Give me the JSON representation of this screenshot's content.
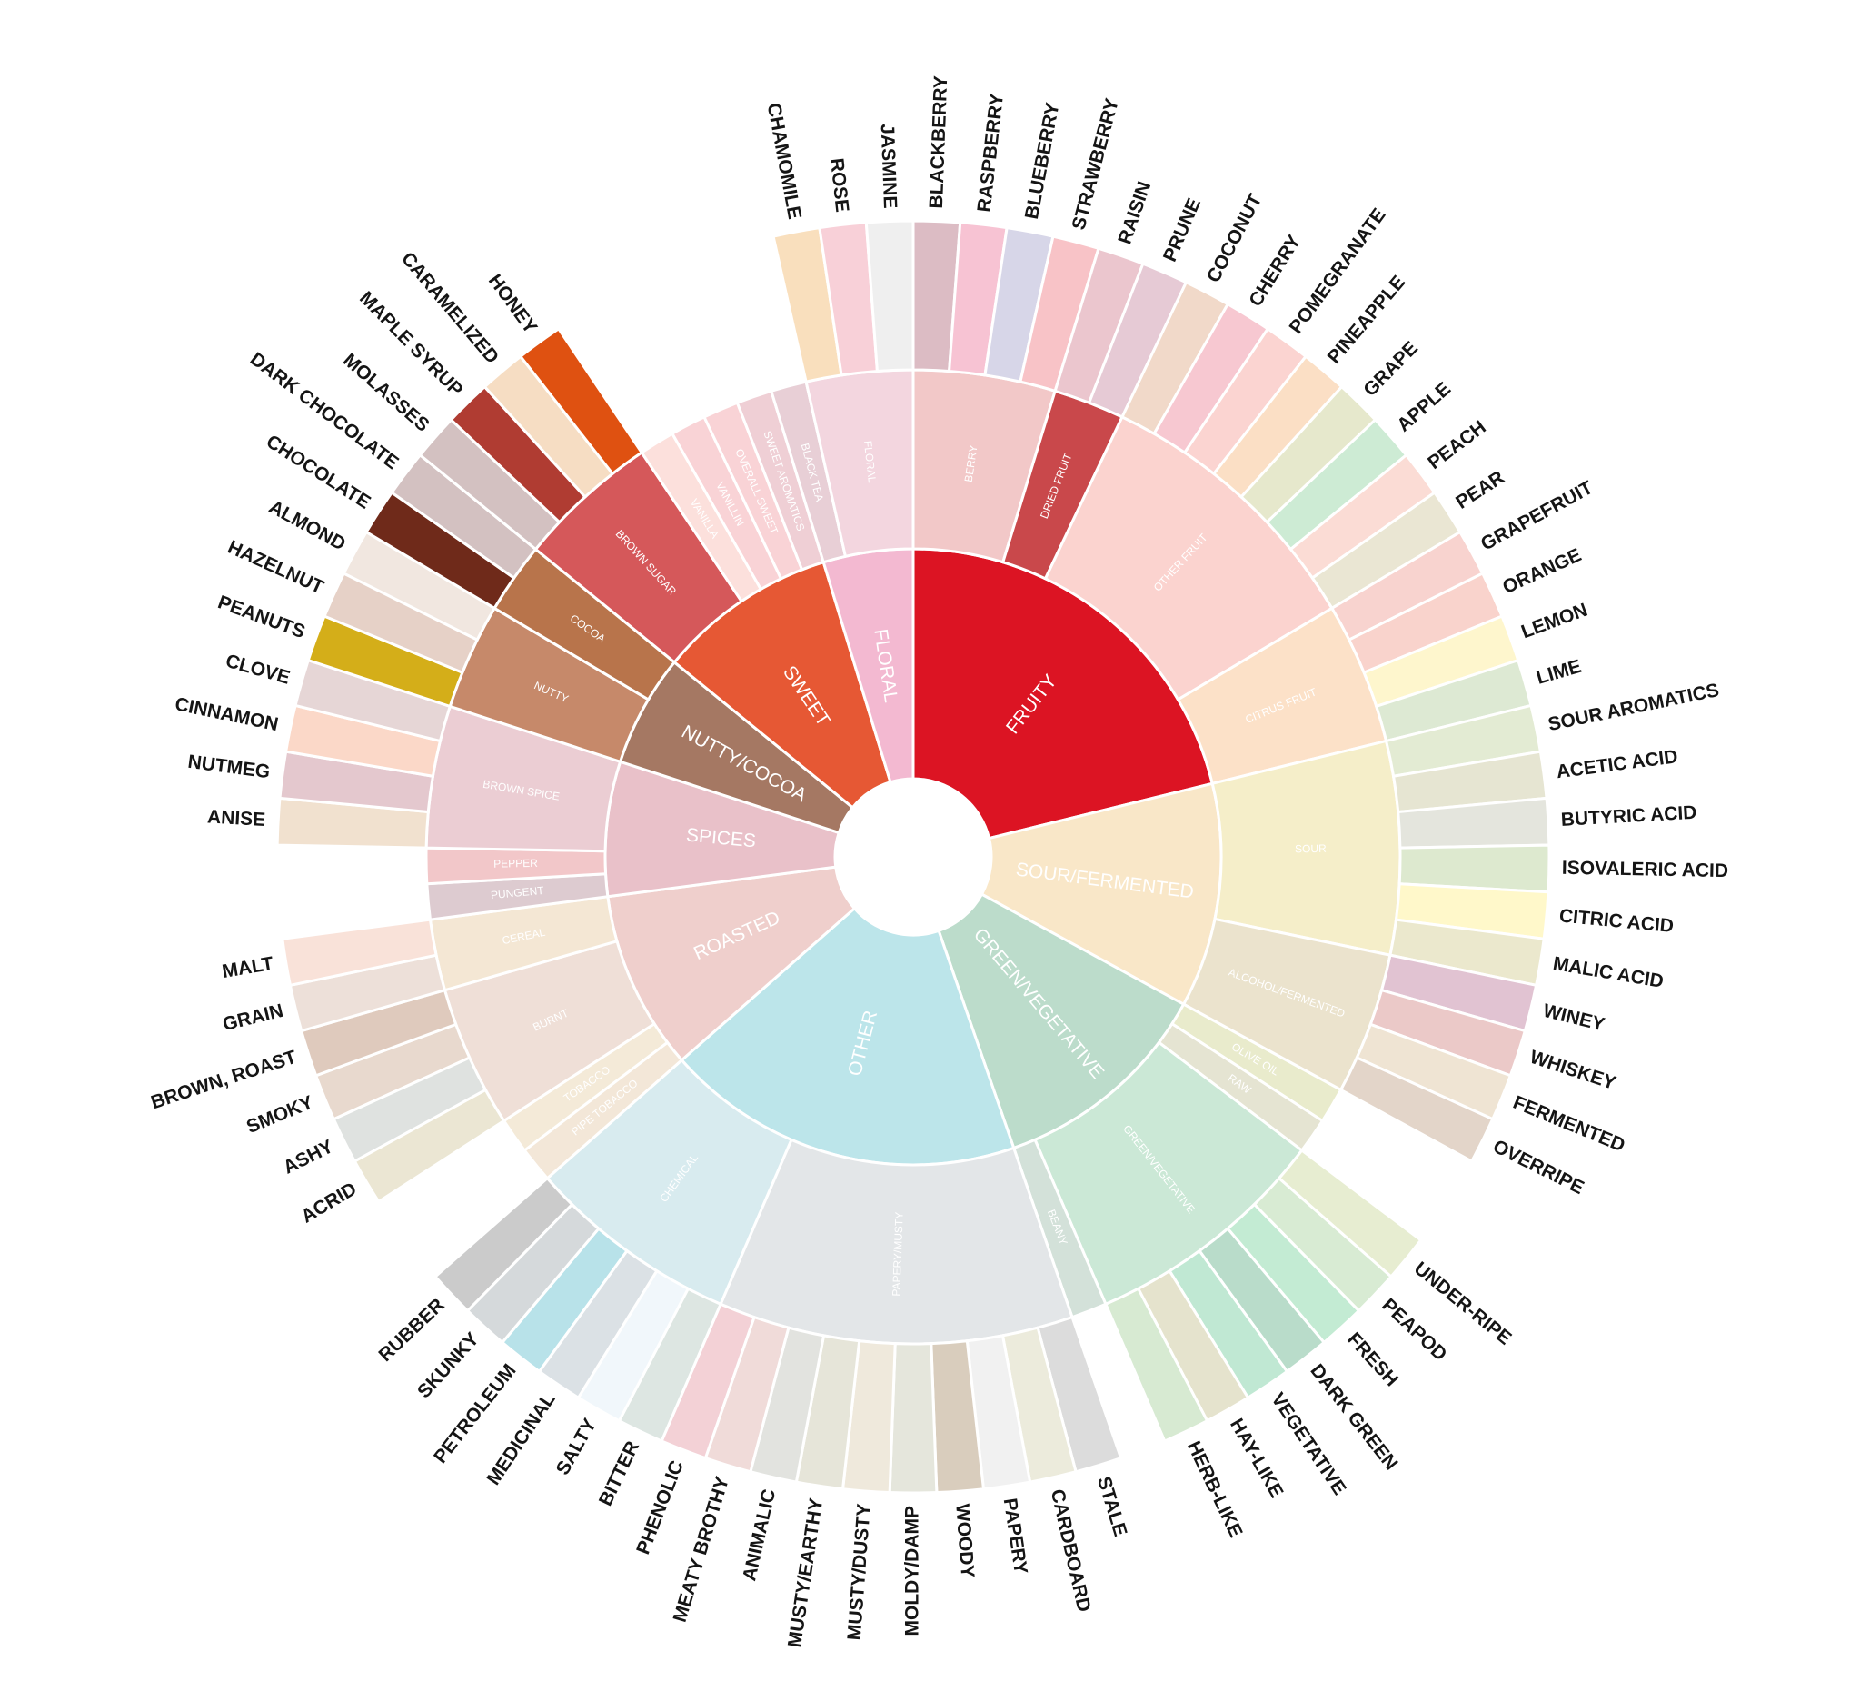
{
  "nodes": [
    {
      "label": "FRUITY",
      "color": "#dc1423",
      "children": [
        {
          "label": "BERRY",
          "color": "#f2c8c8",
          "children": [
            {
              "label": "BLACKBERRY",
              "color": "#dcbcc4"
            },
            {
              "label": "RASPBERRY",
              "color": "#f7c3d3"
            },
            {
              "label": "BLUEBERRY",
              "color": "#d7d6e8"
            },
            {
              "label": "STRAWBERRY",
              "color": "#f8c3c7"
            }
          ]
        },
        {
          "label": "DRIED FRUIT",
          "color": "#c9484b",
          "children": [
            {
              "label": "RAISIN",
              "color": "#ebc6ce"
            },
            {
              "label": "PRUNE",
              "color": "#e6cad5"
            }
          ]
        },
        {
          "label": "OTHER FRUIT",
          "color": "#fbd3cf",
          "children": [
            {
              "label": "COCONUT",
              "color": "#f1d9c9"
            },
            {
              "label": "CHERRY",
              "color": "#f7c8d1"
            },
            {
              "label": "POMEGRANATE",
              "color": "#fbd4d1"
            },
            {
              "label": "PINEAPPLE",
              "color": "#fbdfc5"
            },
            {
              "label": "GRAPE",
              "color": "#e6e8cc"
            },
            {
              "label": "APPLE",
              "color": "#cdebd4"
            },
            {
              "label": "PEACH",
              "color": "#fbdcd5"
            },
            {
              "label": "PEAR",
              "color": "#eae6d3"
            }
          ]
        },
        {
          "label": "CITRUS FRUIT",
          "color": "#fce1c8",
          "children": [
            {
              "label": "GRAPEFRUIT",
              "color": "#f8d3cf"
            },
            {
              "label": "ORANGE",
              "color": "#f9d3cc"
            },
            {
              "label": "LEMON",
              "color": "#fef6cd"
            },
            {
              "label": "LIME",
              "color": "#dde9d3"
            }
          ]
        }
      ]
    },
    {
      "label": "SOUR/FERMENTED",
      "color": "#f9e7c8",
      "children": [
        {
          "label": "SOUR",
          "color": "#f5eec9",
          "children": [
            {
              "label": "SOUR AROMATICS",
              "color": "#e3ebd3"
            },
            {
              "label": "ACETIC ACID",
              "color": "#e6e5d2"
            },
            {
              "label": "BUTYRIC ACID",
              "color": "#e4e5dd"
            },
            {
              "label": "ISOVALERIC ACID",
              "color": "#dde9cf"
            },
            {
              "label": "CITRIC ACID",
              "color": "#fff8ca"
            },
            {
              "label": "MALIC ACID",
              "color": "#ebe8cd"
            }
          ]
        },
        {
          "label": "ALCOHOL/FERMENTED",
          "color": "#ebe3cd",
          "children": [
            {
              "label": "WINEY",
              "color": "#e1c3d2"
            },
            {
              "label": "WHISKEY",
              "color": "#ebc9c8"
            },
            {
              "label": "FERMENTED",
              "color": "#efe4d3"
            },
            {
              "label": "OVERRIPE",
              "color": "#e3d5c9"
            }
          ]
        }
      ]
    },
    {
      "label": "GREEN/VEGETATIVE",
      "color": "#bcdccb",
      "children": [
        {
          "label": "OLIVE OIL",
          "color": "#e9ebcc"
        },
        {
          "label": "RAW",
          "color": "#e5e4d2"
        },
        {
          "label": "GREEN/VEGETATIVE",
          "color": "#cbe8d6",
          "children": [
            {
              "label": "UNDER-RIPE",
              "color": "#e7edd1"
            },
            {
              "label": "PEAPOD",
              "color": "#d8ebd3"
            },
            {
              "label": "FRESH",
              "color": "#c3ebd3"
            },
            {
              "label": "DARK GREEN",
              "color": "#b9dcca"
            },
            {
              "label": "VEGETATIVE",
              "color": "#c0e8d3"
            },
            {
              "label": "HAY-LIKE",
              "color": "#e5e3cd"
            },
            {
              "label": "HERB-LIKE",
              "color": "#d7ead2"
            }
          ]
        },
        {
          "label": "BEANY",
          "color": "#d3e1d9"
        }
      ]
    },
    {
      "label": "OTHER",
      "color": "#bce5ea",
      "children": [
        {
          "label": "PAPERY/MUSTY",
          "color": "#e3e6e8",
          "children": [
            {
              "label": "STALE",
              "color": "#dcdcdc"
            },
            {
              "label": "CARDBOARD",
              "color": "#ecebdc"
            },
            {
              "label": "PAPERY",
              "color": "#f1f1f1"
            },
            {
              "label": "WOODY",
              "color": "#d9cdbd"
            },
            {
              "label": "MOLDY/DAMP",
              "color": "#e5e6dc"
            },
            {
              "label": "MUSTY/DUSTY",
              "color": "#efe9dc"
            },
            {
              "label": "MUSTY/EARTHY",
              "color": "#e6e5d9"
            },
            {
              "label": "ANIMALIC",
              "color": "#e2e3df"
            },
            {
              "label": "MEATY BROTHY",
              "color": "#f0dbd9"
            },
            {
              "label": "PHENOLIC",
              "color": "#f3d1d6"
            }
          ]
        },
        {
          "label": "CHEMICAL",
          "color": "#d8ebef",
          "children": [
            {
              "label": "BITTER",
              "color": "#dde6e2"
            },
            {
              "label": "SALTY",
              "color": "#f1f7fb"
            },
            {
              "label": "MEDICINAL",
              "color": "#dbe1e5"
            },
            {
              "label": "PETROLEUM",
              "color": "#b8e2e9"
            },
            {
              "label": "SKUNKY",
              "color": "#d5d9db"
            },
            {
              "label": "RUBBER",
              "color": "#cbcbcb"
            }
          ]
        }
      ]
    },
    {
      "label": "ROASTED",
      "color": "#efcfcc",
      "children": [
        {
          "label": "PIPE TOBACCO",
          "color": "#f3e7d8"
        },
        {
          "label": "TOBACCO",
          "color": "#f4ead8"
        },
        {
          "label": "BURNT",
          "color": "#efdfd7",
          "children": [
            {
              "label": "ACRID",
              "color": "#ebe6d3"
            },
            {
              "label": "ASHY",
              "color": "#dfe2e0"
            },
            {
              "label": "SMOKY",
              "color": "#e8d9ce"
            },
            {
              "label": "BROWN, ROAST",
              "color": "#dfcabd"
            }
          ]
        },
        {
          "label": "CEREAL",
          "color": "#f4e7d4",
          "children": [
            {
              "label": "GRAIN",
              "color": "#ede0d9"
            },
            {
              "label": "MALT",
              "color": "#f9e2d9"
            }
          ]
        }
      ]
    },
    {
      "label": "SPICES",
      "color": "#e9c1c9",
      "children": [
        {
          "label": "PUNGENT",
          "color": "#ddcbd0"
        },
        {
          "label": "PEPPER",
          "color": "#f2c7c9"
        },
        {
          "label": "BROWN SPICE",
          "color": "#ebcdd3",
          "children": [
            {
              "label": "ANISE",
              "color": "#f1e1cf"
            },
            {
              "label": "NUTMEG",
              "color": "#e4c8ce"
            },
            {
              "label": "CINNAMON",
              "color": "#fbd8c8"
            },
            {
              "label": "CLOVE",
              "color": "#e6d6d6"
            }
          ]
        }
      ]
    },
    {
      "label": "NUTTY/COCOA",
      "color": "#a57863",
      "children": [
        {
          "label": "NUTTY",
          "color": "#c6896a",
          "children": [
            {
              "label": "PEANUTS",
              "color": "#d4ae19"
            },
            {
              "label": "HAZELNUT",
              "color": "#e6d1c7"
            },
            {
              "label": "ALMOND",
              "color": "#f1e7e0"
            }
          ]
        },
        {
          "label": "COCOA",
          "color": "#b8744b",
          "children": [
            {
              "label": "CHOCOLATE",
              "color": "#6f2a1a"
            },
            {
              "label": "DARK CHOCOLATE",
              "color": "#d3c1c1"
            }
          ]
        }
      ]
    },
    {
      "label": "SWEET",
      "color": "#e65834",
      "children": [
        {
          "label": "BROWN SUGAR",
          "color": "#d5585a",
          "children": [
            {
              "label": "MOLASSES",
              "color": "#d3c1c1"
            },
            {
              "label": "MAPLE SYRUP",
              "color": "#b03c32"
            },
            {
              "label": "CARAMELIZED",
              "color": "#f6ddc3"
            },
            {
              "label": "HONEY",
              "color": "#df5111"
            }
          ]
        },
        {
          "label": "VANILLA",
          "color": "#fce0dc"
        },
        {
          "label": "VANILLIN",
          "color": "#f9d3d6"
        },
        {
          "label": "OVERALL SWEET",
          "color": "#f9d3d6"
        },
        {
          "label": "SWEET AROMATICS",
          "color": "#efcfd5"
        }
      ]
    },
    {
      "label": "FLORAL",
      "color": "#f3b9d1",
      "children": [
        {
          "label": "BLACK TEA",
          "color": "#e8cfd6"
        },
        {
          "label": "FLORAL",
          "color": "#f3d6df",
          "children": [
            {
              "label": "CHAMOMILE",
              "color": "#f9dfbd"
            },
            {
              "label": "ROSE",
              "color": "#f8d0d8"
            },
            {
              "label": "JASMINE",
              "color": "#efefef"
            }
          ]
        }
      ]
    }
  ]
}
